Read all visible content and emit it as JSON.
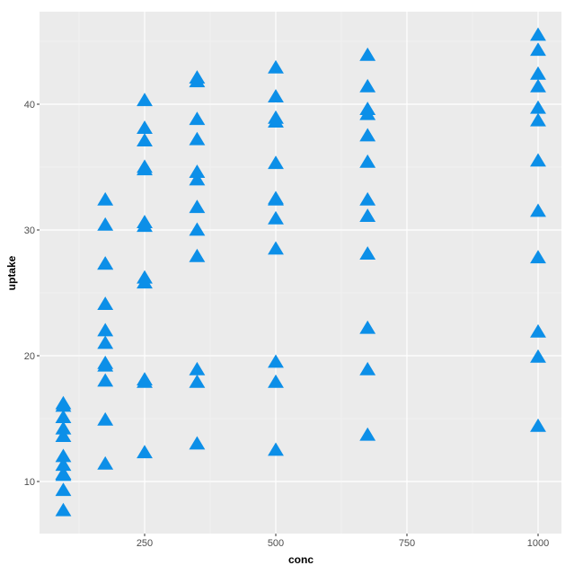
{
  "chart_data": {
    "type": "scatter",
    "title": "",
    "xlabel": "conc",
    "ylabel": "uptake",
    "xlim": [
      45,
      1050
    ],
    "ylim": [
      5.4,
      47.2
    ],
    "x_ticks": [
      250,
      500,
      750,
      1000
    ],
    "y_ticks": [
      10,
      20,
      30,
      40
    ],
    "grid": true,
    "legend": "none",
    "marker": "triangle",
    "color": "#0C8FE8",
    "series": [
      {
        "name": "uptake",
        "points": [
          [
            95,
            16.0
          ],
          [
            175,
            30.4
          ],
          [
            250,
            34.8
          ],
          [
            350,
            37.2
          ],
          [
            500,
            35.3
          ],
          [
            675,
            39.2
          ],
          [
            1000,
            39.7
          ],
          [
            95,
            13.6
          ],
          [
            175,
            27.3
          ],
          [
            250,
            37.1
          ],
          [
            350,
            41.8
          ],
          [
            500,
            40.6
          ],
          [
            675,
            41.4
          ],
          [
            1000,
            44.3
          ],
          [
            95,
            16.2
          ],
          [
            175,
            32.4
          ],
          [
            250,
            40.3
          ],
          [
            350,
            42.1
          ],
          [
            500,
            42.9
          ],
          [
            675,
            43.9
          ],
          [
            1000,
            45.5
          ],
          [
            95,
            14.2
          ],
          [
            175,
            24.1
          ],
          [
            250,
            30.3
          ],
          [
            350,
            34.6
          ],
          [
            500,
            32.5
          ],
          [
            675,
            35.4
          ],
          [
            1000,
            38.7
          ],
          [
            95,
            9.3
          ],
          [
            175,
            27.3
          ],
          [
            250,
            35.0
          ],
          [
            350,
            38.8
          ],
          [
            500,
            38.6
          ],
          [
            675,
            37.5
          ],
          [
            1000,
            42.4
          ],
          [
            95,
            15.1
          ],
          [
            175,
            21.0
          ],
          [
            250,
            38.1
          ],
          [
            350,
            34.0
          ],
          [
            500,
            38.9
          ],
          [
            675,
            39.6
          ],
          [
            1000,
            41.4
          ],
          [
            95,
            10.6
          ],
          [
            175,
            19.2
          ],
          [
            250,
            26.2
          ],
          [
            350,
            30.0
          ],
          [
            500,
            30.9
          ],
          [
            675,
            32.4
          ],
          [
            1000,
            35.5
          ],
          [
            95,
            12.0
          ],
          [
            175,
            22.0
          ],
          [
            250,
            30.6
          ],
          [
            350,
            31.8
          ],
          [
            500,
            32.4
          ],
          [
            675,
            31.1
          ],
          [
            1000,
            31.5
          ],
          [
            95,
            11.3
          ],
          [
            175,
            19.4
          ],
          [
            250,
            25.8
          ],
          [
            350,
            27.9
          ],
          [
            500,
            28.5
          ],
          [
            675,
            28.1
          ],
          [
            1000,
            27.8
          ],
          [
            95,
            10.5
          ],
          [
            175,
            14.9
          ],
          [
            250,
            18.1
          ],
          [
            350,
            18.9
          ],
          [
            500,
            19.5
          ],
          [
            675,
            22.2
          ],
          [
            1000,
            21.9
          ],
          [
            95,
            7.7
          ],
          [
            175,
            11.4
          ],
          [
            250,
            12.3
          ],
          [
            350,
            13.0
          ],
          [
            500,
            12.5
          ],
          [
            675,
            13.7
          ],
          [
            1000,
            14.4
          ],
          [
            95,
            10.6
          ],
          [
            175,
            18.0
          ],
          [
            250,
            17.9
          ],
          [
            350,
            17.9
          ],
          [
            500,
            17.9
          ],
          [
            675,
            18.9
          ],
          [
            1000,
            19.9
          ]
        ]
      }
    ]
  }
}
